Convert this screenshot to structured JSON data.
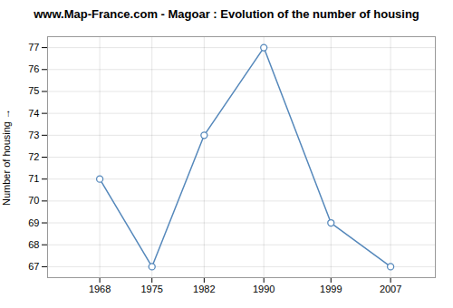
{
  "chart_data": {
    "type": "line",
    "title": "www.Map-France.com - Magoar : Evolution of the number of housing",
    "ylabel": "Number of housing",
    "x": [
      1968,
      1975,
      1982,
      1990,
      1999,
      2007
    ],
    "values": [
      71,
      67,
      73,
      77,
      69,
      67
    ],
    "color": "#5588bb",
    "marker": "circle",
    "xlim": [
      1961,
      2013
    ],
    "ylim": [
      66.5,
      77.5
    ],
    "xticks": [
      1968,
      1975,
      1982,
      1990,
      1999,
      2007
    ],
    "yticks": [
      67,
      68,
      69,
      70,
      71,
      72,
      73,
      74,
      75,
      76,
      77
    ],
    "grid": true
  }
}
